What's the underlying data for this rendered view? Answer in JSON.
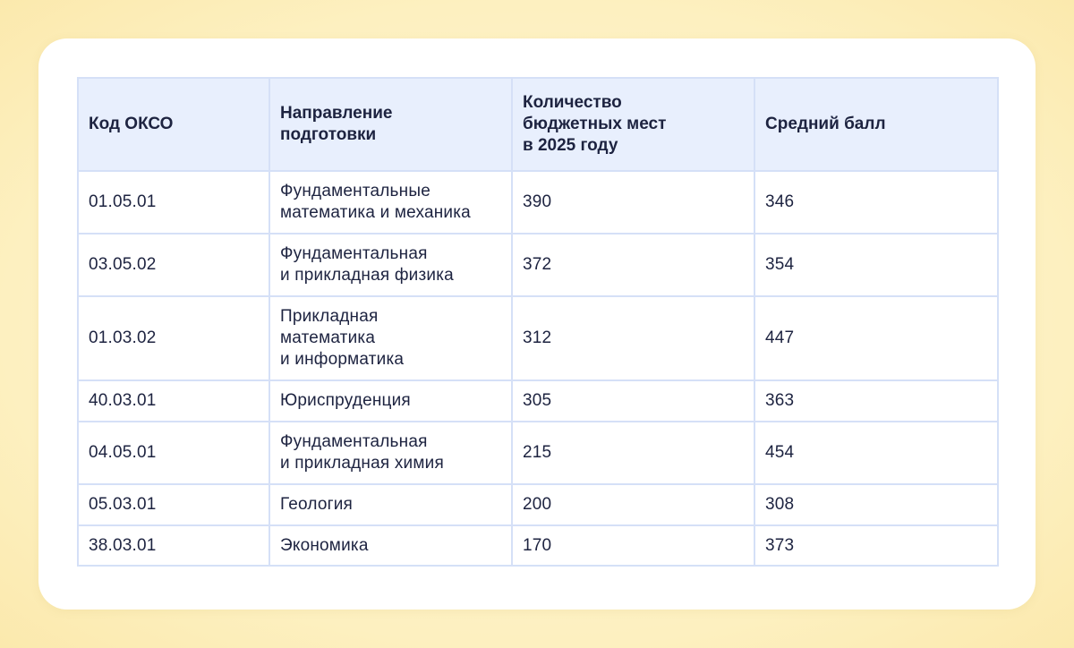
{
  "table": {
    "headers": {
      "code": "Код ОКСО",
      "direction": "Направление\nподготовки",
      "places": "Количество\nбюджетных мест\nв 2025 году",
      "score": "Средний балл"
    },
    "rows": [
      {
        "code": "01.05.01",
        "direction": "Фундаментальные\nматематика и механика",
        "places": "390",
        "score": "346"
      },
      {
        "code": "03.05.02",
        "direction": "Фундаментальная\nи прикладная физика",
        "places": "372",
        "score": "354"
      },
      {
        "code": "01.03.02",
        "direction": "Прикладная\nматематика\nи информатика",
        "places": "312",
        "score": "447"
      },
      {
        "code": "40.03.01",
        "direction": "Юриспруденция",
        "places": "305",
        "score": "363"
      },
      {
        "code": "04.05.01",
        "direction": "Фундаментальная\nи прикладная химия",
        "places": "215",
        "score": "454"
      },
      {
        "code": "05.03.01",
        "direction": "Геология",
        "places": "200",
        "score": "308"
      },
      {
        "code": "38.03.01",
        "direction": "Экономика",
        "places": "170",
        "score": "373"
      }
    ]
  }
}
